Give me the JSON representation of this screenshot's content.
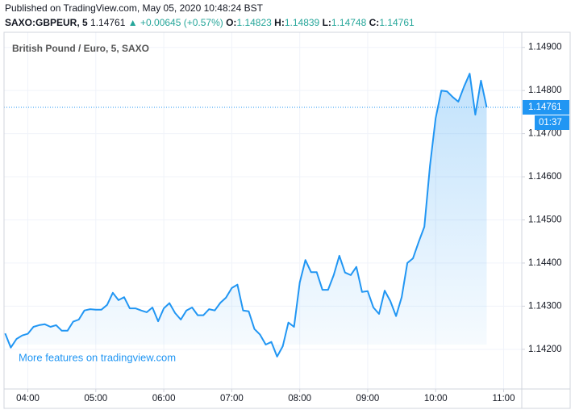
{
  "chart_data": {
    "type": "line",
    "header": "Published on TradingView.com, May 05, 2020 10:48:24 BST",
    "symbol": "SAXO:GBPEUR, 5",
    "last_price": 1.14761,
    "arrow": "▲",
    "change": "+0.00645 (+0.57%)",
    "ohlc": [
      {
        "label": "O:",
        "value": 1.14823
      },
      {
        "label": "H:",
        "value": 1.14839
      },
      {
        "label": "L:",
        "value": 1.14748
      },
      {
        "label": "C:",
        "value": 1.14761
      }
    ],
    "up_color": "#26a69a",
    "legend_title": "British Pound / Euro, 5, SAXO",
    "watermark": "More features on tradingview.com",
    "countdown": "01:37",
    "grid": true,
    "x": [
      220,
      225,
      230,
      235,
      240,
      245,
      250,
      255,
      260,
      265,
      270,
      275,
      280,
      285,
      290,
      295,
      300,
      305,
      310,
      315,
      320,
      325,
      330,
      335,
      340,
      345,
      350,
      355,
      360,
      365,
      370,
      375,
      380,
      385,
      390,
      395,
      400,
      405,
      410,
      415,
      420,
      425,
      430,
      435,
      440,
      445,
      450,
      455,
      460,
      465,
      470,
      475,
      480,
      485,
      490,
      495,
      500,
      505,
      510,
      515,
      520,
      525,
      530,
      535,
      540,
      545,
      550,
      555,
      560,
      565,
      570,
      575,
      580,
      585,
      590,
      595,
      600,
      605,
      610,
      615,
      620,
      625,
      630,
      635,
      640,
      645
    ],
    "series": [
      {
        "name": "GBPEUR",
        "color": "#2196f3",
        "values": [
          1.14237,
          1.14204,
          1.14224,
          1.14232,
          1.14236,
          1.14252,
          1.14256,
          1.14258,
          1.14252,
          1.14256,
          1.14243,
          1.14243,
          1.14264,
          1.14269,
          1.1429,
          1.14293,
          1.14292,
          1.14292,
          1.14303,
          1.14331,
          1.14314,
          1.14321,
          1.14295,
          1.14295,
          1.1429,
          1.14286,
          1.14297,
          1.14265,
          1.14295,
          1.14307,
          1.14284,
          1.14269,
          1.1429,
          1.14297,
          1.14279,
          1.14279,
          1.14293,
          1.1429,
          1.14308,
          1.1432,
          1.14342,
          1.1435,
          1.1429,
          1.14288,
          1.14247,
          1.14234,
          1.14211,
          1.14217,
          1.14183,
          1.14207,
          1.14262,
          1.14252,
          1.14355,
          1.14407,
          1.14379,
          1.14379,
          1.14338,
          1.14338,
          1.14372,
          1.14417,
          1.14378,
          1.14372,
          1.14391,
          1.14333,
          1.14335,
          1.14297,
          1.14282,
          1.14336,
          1.14312,
          1.14277,
          1.14321,
          1.144,
          1.14411,
          1.14449,
          1.14484,
          1.14626,
          1.14736,
          1.148,
          1.14798,
          1.14785,
          1.14774,
          1.14809,
          1.14839,
          1.14744,
          1.14823,
          1.14761
        ]
      }
    ],
    "xlim": [
      219,
      676
    ],
    "xticks": [
      {
        "value": 240,
        "label": "04:00"
      },
      {
        "value": 300,
        "label": "05:00"
      },
      {
        "value": 360,
        "label": "06:00"
      },
      {
        "value": 420,
        "label": "07:00"
      },
      {
        "value": 480,
        "label": "08:00"
      },
      {
        "value": 540,
        "label": "09:00"
      },
      {
        "value": 600,
        "label": "10:00"
      },
      {
        "value": 660,
        "label": "11:00"
      }
    ],
    "ylim": [
      1.14108,
      1.14935
    ],
    "yticks": [
      {
        "value": 1.142,
        "label": "1.14200"
      },
      {
        "value": 1.143,
        "label": "1.14300"
      },
      {
        "value": 1.144,
        "label": "1.14400"
      },
      {
        "value": 1.145,
        "label": "1.14500"
      },
      {
        "value": 1.146,
        "label": "1.14600"
      },
      {
        "value": 1.147,
        "label": "1.14700"
      },
      {
        "value": 1.148,
        "label": "1.14800"
      },
      {
        "value": 1.149,
        "label": "1.14900"
      }
    ]
  }
}
